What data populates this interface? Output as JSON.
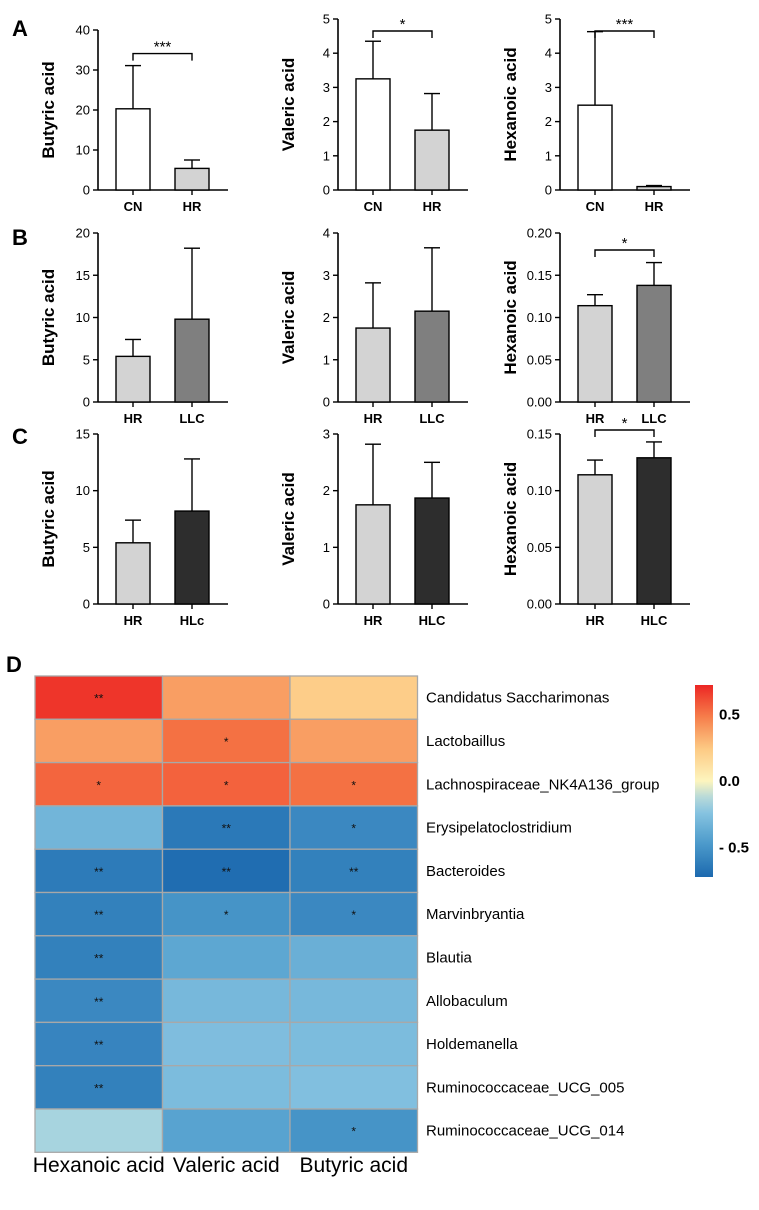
{
  "chart_data": [
    {
      "panel": "A",
      "type": "bar",
      "ylabel": "Butyric acid",
      "categories": [
        "CN",
        "HR"
      ],
      "values": [
        20.3,
        5.4
      ],
      "errors": [
        10.8,
        2.1
      ],
      "colors": [
        "#ffffff",
        "#d3d3d3"
      ],
      "ylim": [
        0,
        40
      ],
      "yticks": [
        "0",
        "10",
        "20",
        "30",
        "40"
      ],
      "significance": "***"
    },
    {
      "panel": "",
      "type": "bar",
      "ylabel": "Valeric acid",
      "categories": [
        "CN",
        "HR"
      ],
      "values": [
        3.25,
        1.75
      ],
      "errors": [
        1.1,
        1.07
      ],
      "colors": [
        "#ffffff",
        "#d3d3d3"
      ],
      "ylim": [
        0,
        5
      ],
      "yticks": [
        "0",
        "1",
        "2",
        "3",
        "4",
        "5"
      ],
      "significance": "*"
    },
    {
      "panel": "",
      "type": "bar",
      "ylabel": "Hexanoic acid",
      "categories": [
        "CN",
        "HR"
      ],
      "values": [
        2.48,
        0.1
      ],
      "errors": [
        2.15,
        0.03
      ],
      "colors": [
        "#ffffff",
        "#d3d3d3"
      ],
      "ylim": [
        0,
        5
      ],
      "yticks": [
        "0",
        "1",
        "2",
        "3",
        "4",
        "5"
      ],
      "significance": "***"
    },
    {
      "panel": "B",
      "type": "bar",
      "ylabel": "Butyric acid",
      "categories": [
        "HR",
        "LLC"
      ],
      "values": [
        5.4,
        9.8
      ],
      "errors": [
        2.0,
        8.4
      ],
      "colors": [
        "#d3d3d3",
        "#7f7f7f"
      ],
      "ylim": [
        0,
        20
      ],
      "yticks": [
        "0",
        "5",
        "10",
        "15",
        "20"
      ],
      "significance": ""
    },
    {
      "panel": "",
      "type": "bar",
      "ylabel": "Valeric acid",
      "categories": [
        "HR",
        "LLC"
      ],
      "values": [
        1.75,
        2.15
      ],
      "errors": [
        1.07,
        1.5
      ],
      "colors": [
        "#d3d3d3",
        "#7f7f7f"
      ],
      "ylim": [
        0,
        4
      ],
      "yticks": [
        "0",
        "1",
        "2",
        "3",
        "4"
      ],
      "significance": ""
    },
    {
      "panel": "",
      "type": "bar",
      "ylabel": "Hexanoic acid",
      "categories": [
        "HR",
        "LLC"
      ],
      "values": [
        0.114,
        0.138
      ],
      "errors": [
        0.013,
        0.027
      ],
      "colors": [
        "#d3d3d3",
        "#7f7f7f"
      ],
      "ylim": [
        0,
        0.2
      ],
      "yticks": [
        "0.00",
        "0.05",
        "0.10",
        "0.15",
        "0.20"
      ],
      "significance": "*"
    },
    {
      "panel": "C",
      "type": "bar",
      "ylabel": "Butyric acid",
      "categories": [
        "HR",
        "HLc"
      ],
      "values": [
        5.4,
        8.2
      ],
      "errors": [
        2.0,
        4.6
      ],
      "colors": [
        "#d3d3d3",
        "#2d2d2d"
      ],
      "ylim": [
        0,
        15
      ],
      "yticks": [
        "0",
        "5",
        "10",
        "15"
      ],
      "significance": ""
    },
    {
      "panel": "",
      "type": "bar",
      "ylabel": "Valeric acid",
      "categories": [
        "HR",
        "HLC"
      ],
      "values": [
        1.75,
        1.87
      ],
      "errors": [
        1.07,
        0.63
      ],
      "colors": [
        "#d3d3d3",
        "#2d2d2d"
      ],
      "ylim": [
        0,
        3
      ],
      "yticks": [
        "0",
        "1",
        "2",
        "3"
      ],
      "significance": ""
    },
    {
      "panel": "",
      "type": "bar",
      "ylabel": "Hexanoic acid",
      "categories": [
        "HR",
        "HLC"
      ],
      "values": [
        0.114,
        0.129
      ],
      "errors": [
        0.013,
        0.014
      ],
      "colors": [
        "#d3d3d3",
        "#2d2d2d"
      ],
      "ylim": [
        0,
        0.15
      ],
      "yticks": [
        "0.00",
        "0.05",
        "0.10",
        "0.15"
      ],
      "significance": "*"
    },
    {
      "panel": "D",
      "type": "heatmap",
      "columns": [
        "Hexanoic acid",
        "Valeric acid",
        "Butyric acid"
      ],
      "rows": [
        "Candidatus Saccharimonas",
        "Lactobaillus",
        "Lachnospiraceae_NK4A136_group",
        "Erysipelatoclostridium",
        "Bacteroides",
        "Marvinbryantia",
        "Blautia",
        "Allobaculum",
        "Holdemanella",
        "Ruminococcaceae_UCG_005",
        "Ruminococcaceae_UCG_014"
      ],
      "values": [
        [
          0.68,
          0.38,
          0.22
        ],
        [
          0.38,
          0.52,
          0.38
        ],
        [
          0.55,
          0.56,
          0.52
        ],
        [
          -0.32,
          -0.64,
          -0.56
        ],
        [
          -0.63,
          -0.7,
          -0.6
        ],
        [
          -0.6,
          -0.5,
          -0.56
        ],
        [
          -0.6,
          -0.4,
          -0.35
        ],
        [
          -0.56,
          -0.3,
          -0.3
        ],
        [
          -0.58,
          -0.27,
          -0.28
        ],
        [
          -0.6,
          -0.28,
          -0.26
        ],
        [
          -0.15,
          -0.42,
          -0.5
        ]
      ],
      "stars": [
        [
          "**",
          "",
          ""
        ],
        [
          "",
          "*",
          ""
        ],
        [
          "*",
          "*",
          "*"
        ],
        [
          "",
          "**",
          "*"
        ],
        [
          "**",
          "**",
          "**"
        ],
        [
          "**",
          "*",
          "*"
        ],
        [
          "**",
          "",
          ""
        ],
        [
          "**",
          "",
          ""
        ],
        [
          "**",
          "",
          ""
        ],
        [
          "**",
          "",
          ""
        ],
        [
          "",
          "",
          "*"
        ]
      ],
      "colorbar": {
        "ticks": [
          "0.5",
          "0.0",
          "- 0.5"
        ],
        "tick_values": [
          0.5,
          0,
          -0.5
        ],
        "range": [
          -0.72,
          0.72
        ]
      }
    }
  ]
}
